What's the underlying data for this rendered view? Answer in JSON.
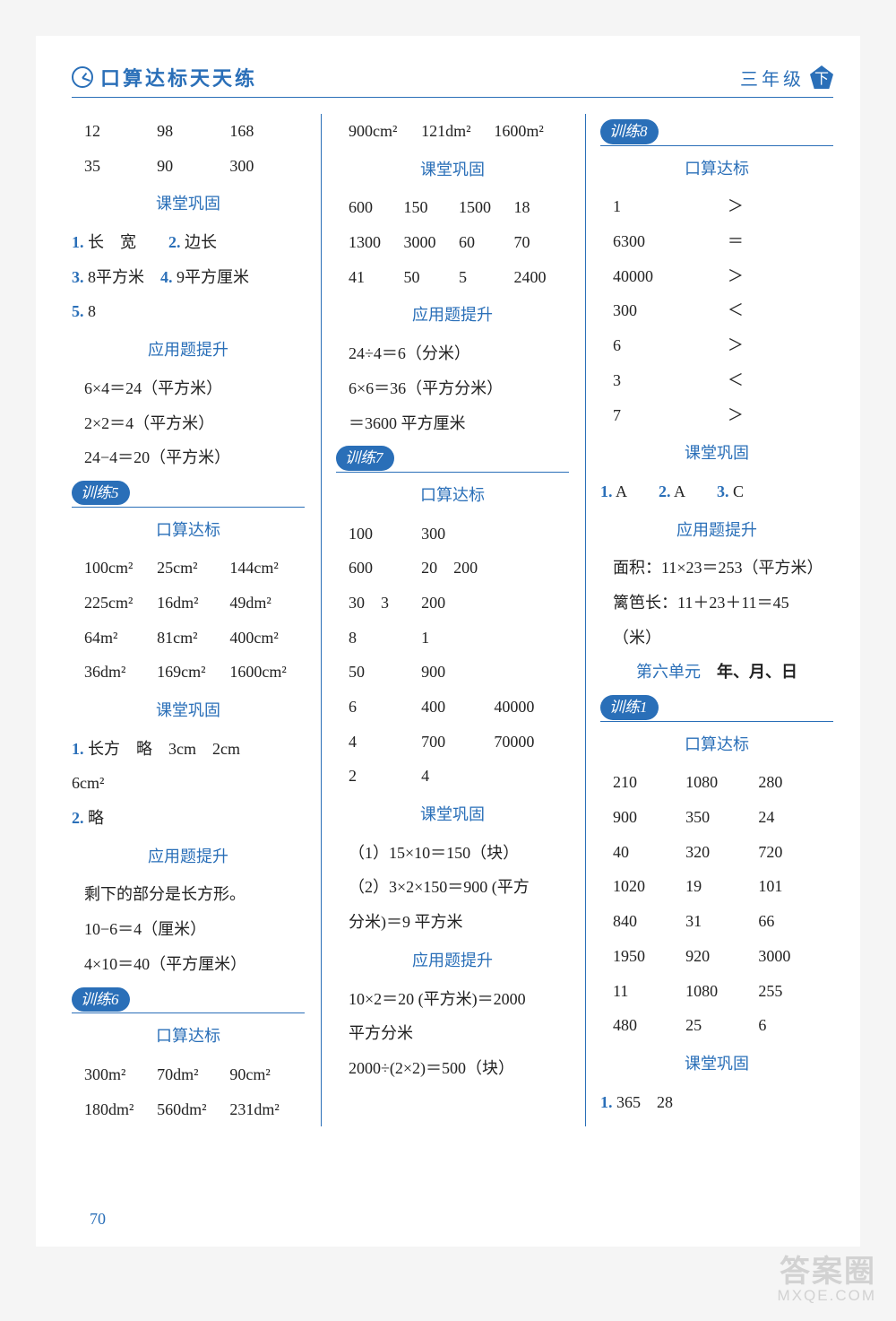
{
  "header": {
    "title": "口算达标天天练",
    "grade": "三年级",
    "badge": "下"
  },
  "pageNumber": "70",
  "watermark": {
    "line1": "答案圈",
    "line2": "MXQE.COM"
  },
  "labels": {
    "kousuan": "口算达标",
    "ketang": "课堂巩固",
    "yingyong": "应用题提升"
  },
  "unit6": {
    "prefix": "第六单元",
    "title": "年、月、日"
  },
  "col1": {
    "topRows": [
      [
        "12",
        "98",
        "168"
      ],
      [
        "35",
        "90",
        "300"
      ]
    ],
    "ketang": [
      {
        "n": "1.",
        "t": "长　宽"
      },
      {
        "n": "2.",
        "t": "边长"
      },
      {
        "n": "3.",
        "t": "8平方米"
      },
      {
        "n": "4.",
        "t": "9平方厘米"
      },
      {
        "n": "5.",
        "t": "8"
      }
    ],
    "ying1": [
      "6×4＝24（平方米）",
      "2×2＝4（平方米）",
      "24−4＝20（平方米）"
    ],
    "x5": "训练5",
    "ks5": [
      [
        "100cm²",
        "25cm²",
        "144cm²"
      ],
      [
        "225cm²",
        "16dm²",
        "49dm²"
      ],
      [
        "64m²",
        "81cm²",
        "400cm²"
      ],
      [
        "36dm²",
        "169cm²",
        "1600cm²"
      ]
    ],
    "kt5a": {
      "n": "1.",
      "t": "长方　略　3cm　2cm"
    },
    "kt5b": "6cm²",
    "kt5c": {
      "n": "2.",
      "t": "略"
    },
    "ying5": [
      "剩下的部分是长方形。",
      "10−6＝4（厘米）",
      "4×10＝40（平方厘米）"
    ],
    "x6": "训练6",
    "ks6": [
      [
        "300m²",
        "70dm²",
        "90cm²"
      ],
      [
        "180dm²",
        "560dm²",
        "231dm²"
      ]
    ]
  },
  "col2": {
    "topRow": [
      "900cm²",
      "121dm²",
      "1600m²"
    ],
    "ktRows": [
      [
        "600",
        "150",
        "1500",
        "18"
      ],
      [
        "1300",
        "3000",
        "60",
        "70"
      ],
      [
        "41",
        "50",
        "5",
        "2400"
      ]
    ],
    "ying": [
      "24÷4＝6（分米）",
      "6×6＝36（平方分米）",
      "＝3600 平方厘米"
    ],
    "x7": "训练7",
    "ks7": [
      [
        "100",
        "300",
        ""
      ],
      [
        "600",
        "20　200",
        ""
      ],
      [
        "30　3",
        "200",
        ""
      ],
      [
        "8",
        "1",
        ""
      ],
      [
        "50",
        "900",
        ""
      ],
      [
        "6",
        "400",
        "40000"
      ],
      [
        "4",
        "700",
        "70000"
      ],
      [
        "2",
        "4",
        ""
      ]
    ],
    "kt7": [
      "（1）15×10＝150（块）",
      "（2）3×2×150＝900 (平方",
      "分米)＝9 平方米"
    ],
    "ying7": [
      "10×2＝20 (平方米)＝2000",
      "平方分米",
      "2000÷(2×2)＝500（块）"
    ]
  },
  "col3": {
    "x8": "训练8",
    "ks8": [
      [
        "1",
        "＞"
      ],
      [
        "6300",
        "＝"
      ],
      [
        "40000",
        "＞"
      ],
      [
        "300",
        "＜"
      ],
      [
        "6",
        "＞"
      ],
      [
        "3",
        "＜"
      ],
      [
        "7",
        "＞"
      ]
    ],
    "kt8": [
      {
        "n": "1.",
        "t": "A"
      },
      {
        "n": "2.",
        "t": "A"
      },
      {
        "n": "3.",
        "t": "C"
      }
    ],
    "ying8": [
      "面积：11×23＝253（平方米）",
      "篱笆长：11＋23＋11＝45",
      "（米）"
    ],
    "x1": "训练1",
    "ks1": [
      [
        "210",
        "1080",
        "280"
      ],
      [
        "900",
        "350",
        "24"
      ],
      [
        "40",
        "320",
        "720"
      ],
      [
        "1020",
        "19",
        "101"
      ],
      [
        "840",
        "31",
        "66"
      ],
      [
        "1950",
        "920",
        "3000"
      ],
      [
        "11",
        "1080",
        "255"
      ],
      [
        "480",
        "25",
        "6"
      ]
    ],
    "kt1": {
      "n": "1.",
      "t": "365　28"
    }
  }
}
